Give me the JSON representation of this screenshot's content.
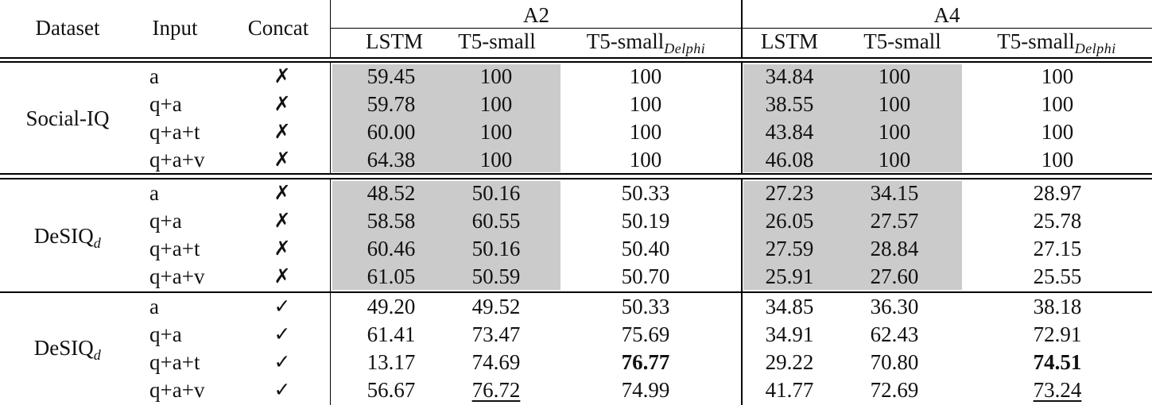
{
  "header": {
    "dataset": "Dataset",
    "input": "Input",
    "concat": "Concat",
    "group_a2": "A2",
    "group_a4": "A4",
    "lstm": "LSTM",
    "t5_small": "T5-small",
    "t5_delphi_base": "T5-small",
    "t5_delphi_sub": "Delphi"
  },
  "sections": [
    {
      "dataset": "Social-IQ",
      "dataset_sub": "",
      "rows": [
        {
          "input": "a",
          "concat": "✗",
          "v": [
            "59.45",
            "100",
            "100",
            "34.84",
            "100",
            "100"
          ]
        },
        {
          "input": "q+a",
          "concat": "✗",
          "v": [
            "59.78",
            "100",
            "100",
            "38.55",
            "100",
            "100"
          ]
        },
        {
          "input": "q+a+t",
          "concat": "✗",
          "v": [
            "60.00",
            "100",
            "100",
            "43.84",
            "100",
            "100"
          ]
        },
        {
          "input": "q+a+v",
          "concat": "✗",
          "v": [
            "64.38",
            "100",
            "100",
            "46.08",
            "100",
            "100"
          ]
        }
      ]
    },
    {
      "dataset": "DeSIQ",
      "dataset_sub": "d",
      "rows": [
        {
          "input": "a",
          "concat": "✗",
          "v": [
            "48.52",
            "50.16",
            "50.33",
            "27.23",
            "34.15",
            "28.97"
          ]
        },
        {
          "input": "q+a",
          "concat": "✗",
          "v": [
            "58.58",
            "60.55",
            "50.19",
            "26.05",
            "27.57",
            "25.78"
          ]
        },
        {
          "input": "q+a+t",
          "concat": "✗",
          "v": [
            "60.46",
            "50.16",
            "50.40",
            "27.59",
            "28.84",
            "27.15"
          ]
        },
        {
          "input": "q+a+v",
          "concat": "✗",
          "v": [
            "61.05",
            "50.59",
            "50.70",
            "25.91",
            "27.60",
            "25.55"
          ]
        }
      ]
    },
    {
      "dataset": "DeSIQ",
      "dataset_sub": "d",
      "rows": [
        {
          "input": "a",
          "concat": "✓",
          "v": [
            "49.20",
            "49.52",
            "50.33",
            "34.85",
            "36.30",
            "38.18"
          ]
        },
        {
          "input": "q+a",
          "concat": "✓",
          "v": [
            "61.41",
            "73.47",
            "75.69",
            "34.91",
            "62.43",
            "72.91"
          ]
        },
        {
          "input": "q+a+t",
          "concat": "✓",
          "v": [
            "13.17",
            "74.69",
            "76.77",
            "29.22",
            "70.80",
            "74.51"
          ]
        },
        {
          "input": "q+a+v",
          "concat": "✓",
          "v": [
            "56.67",
            "76.72",
            "74.99",
            "41.77",
            "72.69",
            "73.24"
          ]
        }
      ]
    }
  ],
  "emphasis": {
    "bold": [
      "2-2-2",
      "2-2-5"
    ],
    "underline": [
      "2-3-1",
      "2-3-5"
    ]
  }
}
